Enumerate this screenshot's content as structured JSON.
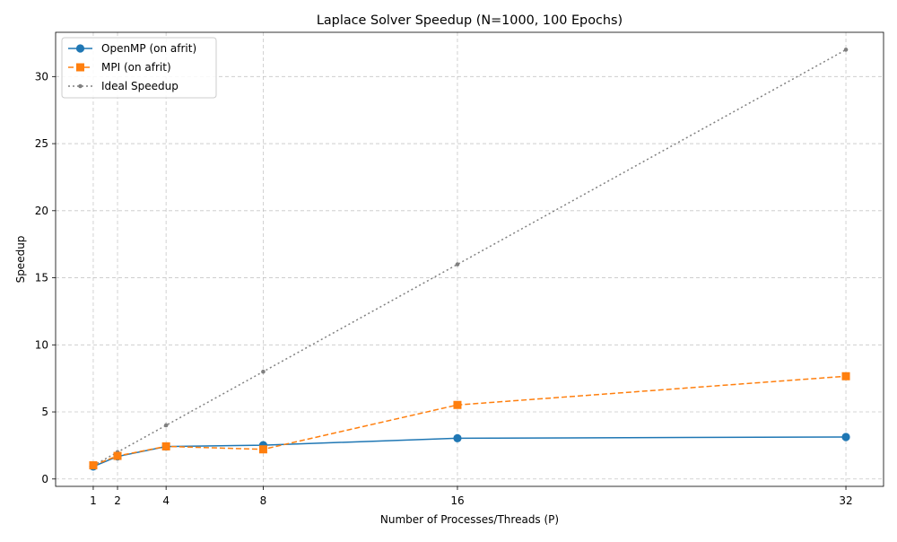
{
  "chart_data": {
    "type": "line",
    "title": "Laplace Solver Speedup (N=1000, 100 Epochs)",
    "xlabel": "Number of Processes/Threads (P)",
    "ylabel": "Speedup",
    "x": [
      1,
      2,
      4,
      8,
      16,
      32
    ],
    "xticks": [
      "1",
      "2",
      "4",
      "8",
      "16",
      "32"
    ],
    "yticks": [
      0,
      5,
      10,
      15,
      20,
      25,
      30
    ],
    "xlim": [
      -0.55,
      33.55
    ],
    "ylim": [
      -0.55,
      33.3
    ],
    "grid": true,
    "legend_position": "top-left",
    "series": [
      {
        "name": "OpenMP (on afrit)",
        "values": [
          0.93,
          1.68,
          2.42,
          2.52,
          3.04,
          3.13
        ],
        "color": "#1f77b4",
        "line_style": "solid",
        "marker": "circle"
      },
      {
        "name": "MPI (on afrit)",
        "values": [
          1.02,
          1.72,
          2.43,
          2.21,
          5.52,
          7.66
        ],
        "color": "#ff7f0e",
        "line_style": "dashed",
        "marker": "square"
      },
      {
        "name": "Ideal Speedup",
        "values": [
          1,
          2,
          4,
          8,
          16,
          32
        ],
        "color": "#808080",
        "line_style": "dotted",
        "marker": "dot"
      }
    ]
  }
}
